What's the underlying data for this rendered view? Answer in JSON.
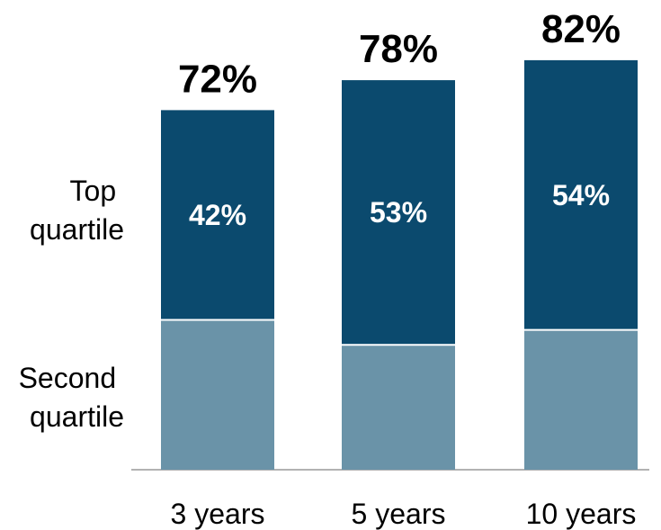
{
  "chart_data": {
    "type": "bar",
    "stacked": true,
    "categories": [
      "3 years",
      "5 years",
      "10 years"
    ],
    "series": [
      {
        "name": "Second quartile",
        "values": [
          30,
          25,
          28
        ],
        "color": "#6a93a8"
      },
      {
        "name": "Top quartile",
        "values": [
          42,
          53,
          54
        ],
        "color": "#0b4a6e"
      }
    ],
    "top_labels": [
      "42%",
      "53%",
      "54%"
    ],
    "totals": [
      72,
      78,
      82
    ],
    "total_labels": [
      "72%",
      "78%",
      "82%"
    ],
    "legend": {
      "placement": "left",
      "top_quartile": [
        "Top",
        "quartile"
      ],
      "second_quartile": [
        "Second",
        "quartile"
      ]
    },
    "title": "",
    "xlabel": "",
    "ylabel": "",
    "ylim": [
      0,
      100
    ],
    "grid": false,
    "colors": {
      "axis": "#999999"
    }
  }
}
